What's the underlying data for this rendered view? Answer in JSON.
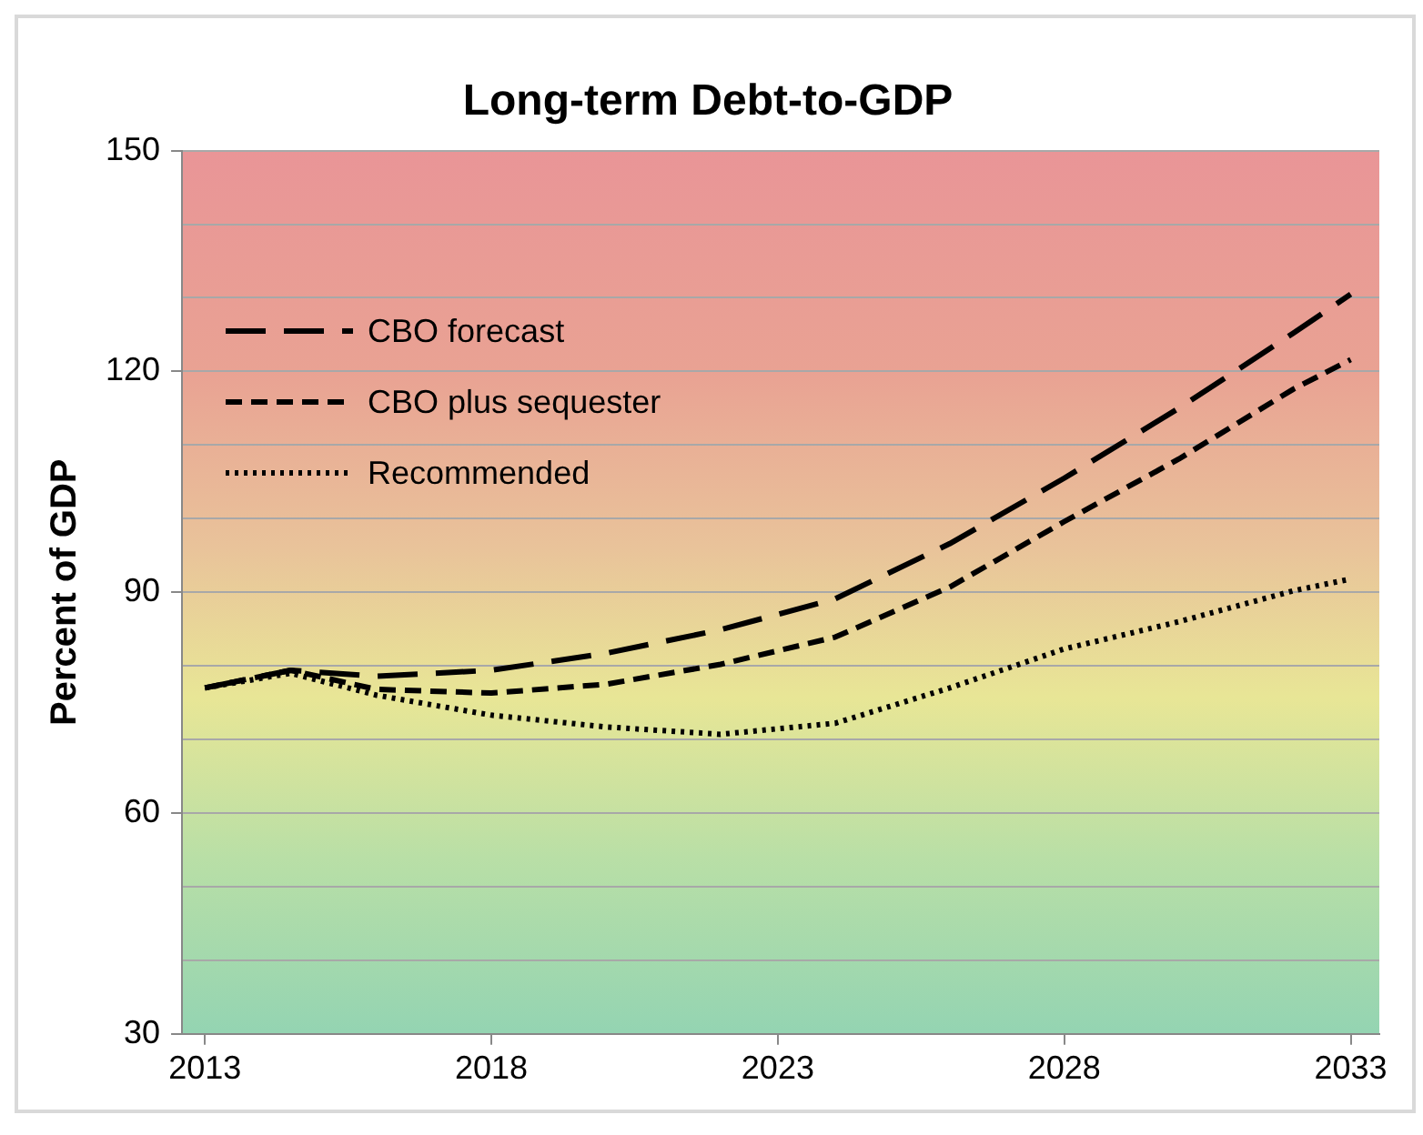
{
  "chart_data": {
    "type": "line",
    "title": "Long-term Debt-to-GDP",
    "ylabel": "Percent of GDP",
    "x": [
      2013,
      2014.5,
      2016,
      2018,
      2020,
      2022,
      2024,
      2026,
      2028,
      2030,
      2032,
      2033
    ],
    "series": [
      {
        "name": "CBO forecast",
        "color": "#000000",
        "line_style": "dashed",
        "values": [
          77,
          79.4,
          78.6,
          79.4,
          81.7,
          84.9,
          89.1,
          96.6,
          105.5,
          115,
          125.2,
          130.5
        ]
      },
      {
        "name": "CBO plus sequester",
        "color": "#000000",
        "line_style": "dashed",
        "values": [
          77,
          79.4,
          76.8,
          76.3,
          77.5,
          80.2,
          83.9,
          90.7,
          99.6,
          108.1,
          117.6,
          121.6
        ]
      },
      {
        "name": "Recommended",
        "color": "#000000",
        "line_style": "dotted",
        "values": [
          77,
          79,
          76,
          73.3,
          71.7,
          70.7,
          72.2,
          77,
          82.3,
          86,
          90.2,
          91.8
        ]
      }
    ],
    "xlim": [
      2012.6,
      2033.5
    ],
    "xticks": [
      2013,
      2018,
      2023,
      2028,
      2033
    ],
    "ylim": [
      30,
      150
    ],
    "yticks": [
      30,
      {
        "value": 40,
        "label": null
      },
      {
        "value": 50,
        "label": null
      },
      60,
      {
        "value": 70,
        "label": null
      },
      {
        "value": 80,
        "label": null
      },
      90,
      {
        "value": 100,
        "label": null
      },
      {
        "value": 110,
        "label": null
      },
      120,
      {
        "value": 130,
        "label": null
      },
      {
        "value": 140,
        "label": null
      },
      150
    ],
    "grid": "y",
    "legend": "top left",
    "marker": "none"
  }
}
